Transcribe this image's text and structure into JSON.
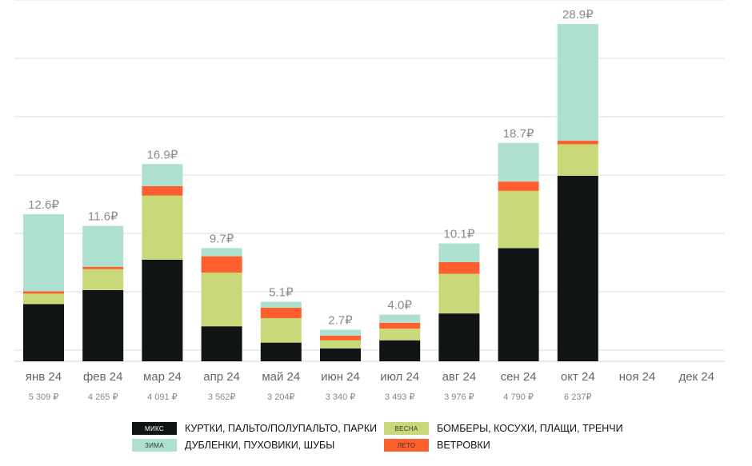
{
  "chart_data": {
    "type": "bar",
    "stacked": true,
    "title": "",
    "xlabel": "",
    "ylabel": "",
    "ylim": [
      0,
      30
    ],
    "grid": true,
    "categories": [
      "янв 24",
      "фев 24",
      "мар 24",
      "апр 24",
      "май 24",
      "июн 24",
      "июл 24",
      "авг 24",
      "сен 24",
      "окт 24",
      "ноя 24",
      "дек 24"
    ],
    "totals_labels": [
      "12.6₽",
      "11.6₽",
      "16.9₽",
      "9.7₽",
      "5.1₽",
      "2.7₽",
      "4.0₽",
      "10.1₽",
      "18.7₽",
      "28.9₽",
      "",
      ""
    ],
    "sub_labels": [
      "5 309 ₽",
      "4 265 ₽",
      "4 091 ₽",
      "3 562₽",
      "3 204₽",
      "3 340 ₽",
      "3 493 ₽",
      "3 976 ₽",
      "4 790 ₽",
      "6 237₽",
      "",
      ""
    ],
    "series": [
      {
        "name": "МИКС",
        "color": "#111414",
        "values": [
          4.9,
          6.1,
          8.7,
          3.0,
          1.6,
          1.1,
          1.8,
          4.1,
          9.7,
          15.9,
          null,
          null
        ]
      },
      {
        "name": "ВЕСНА",
        "color": "#c9d879",
        "values": [
          0.9,
          1.8,
          5.5,
          4.6,
          2.1,
          0.7,
          1.0,
          3.4,
          4.9,
          2.7,
          null,
          null
        ]
      },
      {
        "name": "ЛЕТО",
        "color": "#ff5e2e",
        "values": [
          0.2,
          0.2,
          0.8,
          1.4,
          0.9,
          0.4,
          0.5,
          1.0,
          0.8,
          0.3,
          null,
          null
        ]
      },
      {
        "name": "ЗИМА",
        "color": "#ade0d0",
        "values": [
          6.6,
          3.5,
          1.9,
          0.7,
          0.5,
          0.5,
          0.7,
          1.6,
          3.3,
          10.0,
          null,
          null
        ]
      }
    ]
  },
  "legend": [
    {
      "tag": "МИКС",
      "text": "КУРТКИ, ПАЛЬТО/ПОЛУПАЛЬТО, ПАРКИ",
      "color": "#111414",
      "tag_color": "#ffffff"
    },
    {
      "tag": "ВЕСНА",
      "text": "БОМБЕРЫ, КОСУХИ, ПЛАЩИ, ТРЕНЧИ",
      "color": "#c9d879",
      "tag_color": "#333333"
    },
    {
      "tag": "ЗИМА",
      "text": "ДУБЛЕНКИ, ПУХОВИКИ, ШУБЫ",
      "color": "#ade0d0",
      "tag_color": "#333333"
    },
    {
      "tag": "ЛЕТО",
      "text": "ВЕТРОВКИ",
      "color": "#ff5e2e",
      "tag_color": "#333333"
    }
  ]
}
